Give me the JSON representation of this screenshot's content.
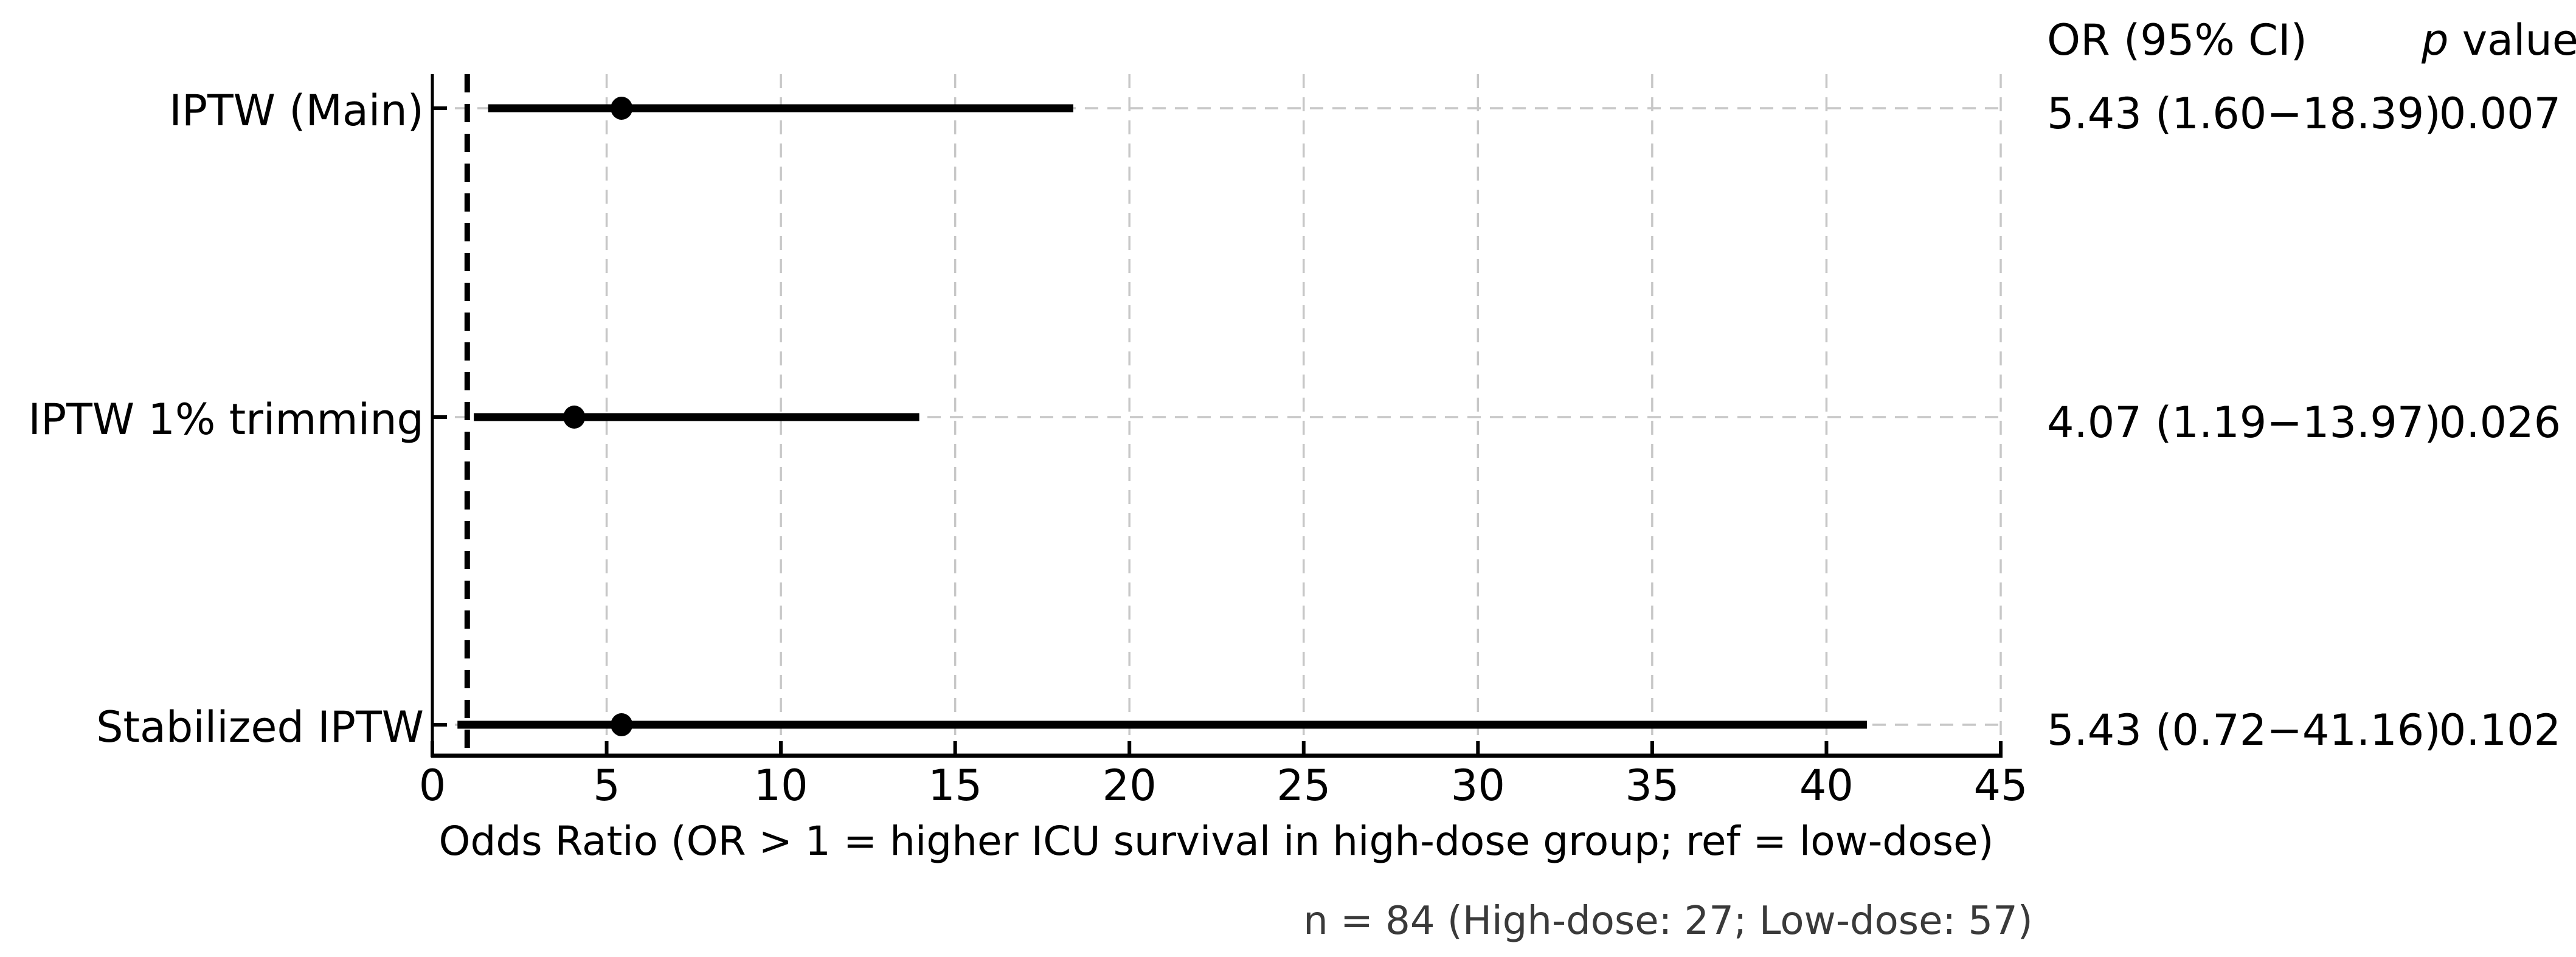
{
  "chart_data": {
    "type": "forest",
    "orientation": "horizontal",
    "xlabel": "Odds Ratio (OR > 1 = higher ICU survival in high-dose group; ref = low-dose)",
    "note": "n = 84 (High-dose: 27; Low-dose: 57)",
    "columns": {
      "or_ci_header": "OR (95% CI)",
      "p_header_italic": "p",
      "p_header_rest": " value"
    },
    "x_ticks": [
      0,
      5,
      10,
      15,
      20,
      25,
      30,
      35,
      40,
      45
    ],
    "xlim": [
      0,
      45
    ],
    "reference_line_x": 1,
    "grid": true,
    "rows": [
      {
        "label": "IPTW (Main)",
        "or": 5.43,
        "ci_low": 1.6,
        "ci_high": 18.39,
        "or_ci_text": "5.43 (1.60−18.39)",
        "p_value": "0.007"
      },
      {
        "label": "IPTW 1% trimming",
        "or": 4.07,
        "ci_low": 1.19,
        "ci_high": 13.97,
        "or_ci_text": "4.07 (1.19−13.97)",
        "p_value": "0.026"
      },
      {
        "label": "Stabilized IPTW",
        "or": 5.43,
        "ci_low": 0.72,
        "ci_high": 41.16,
        "or_ci_text": "5.43 (0.72−41.16)",
        "p_value": "0.102"
      }
    ],
    "colors": {
      "marker": "#000000",
      "ci_line": "#000000",
      "reference_line": "#000000",
      "gridline": "#c7c7c7",
      "axis": "#000000",
      "text": "#000000",
      "note_text": "#3a3a3a"
    }
  }
}
